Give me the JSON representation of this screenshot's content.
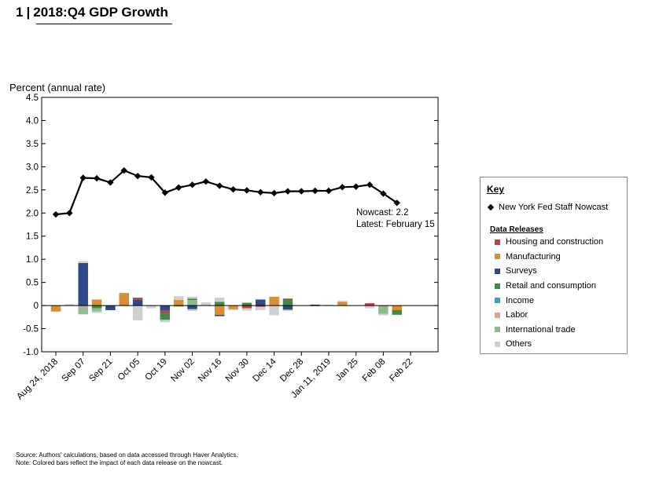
{
  "header": {
    "number": "1",
    "title": "2018:Q4 GDP Growth"
  },
  "chart_data": {
    "type": "line",
    "ylabel": "Percent (annual rate)",
    "ylim": [
      -1.0,
      4.5
    ],
    "yticks": [
      "4.5",
      "4.0",
      "3.5",
      "3.0",
      "2.5",
      "2.0",
      "1.5",
      "1.0",
      "0.5",
      "0",
      "-0.5",
      "-1.0"
    ],
    "ytick_values": [
      4.5,
      4.0,
      3.5,
      3.0,
      2.5,
      2.0,
      1.5,
      1.0,
      0.5,
      0,
      -0.5,
      -1.0
    ],
    "xtick_labels": [
      "Aug 24, 2018",
      "Sep 07",
      "Sep 21",
      "Oct 05",
      "Oct 19",
      "Nov 02",
      "Nov 16",
      "Nov 30",
      "Dec 14",
      "Dec 28",
      "Jan 11, 2019",
      "Jan 25",
      "Feb 08",
      "Feb 22"
    ],
    "nowcast": {
      "name": "New York Fed Staff Nowcast",
      "values": [
        1.97,
        2.0,
        2.76,
        2.75,
        2.66,
        2.92,
        2.8,
        2.77,
        2.44,
        2.55,
        2.61,
        2.68,
        2.59,
        2.51,
        2.49,
        2.45,
        2.43,
        2.47,
        2.47,
        2.48,
        2.48,
        2.56,
        2.57,
        2.61,
        2.42,
        2.22
      ]
    },
    "annotation": {
      "line1": "Nowcast:  2.2",
      "line2": "Latest: February 15"
    },
    "legend": {
      "key_title": "Key",
      "data_releases_title": "Data Releases",
      "categories": [
        {
          "name": "Housing and construction",
          "color": "#c0404a"
        },
        {
          "name": "Manufacturing",
          "color": "#d98e34"
        },
        {
          "name": "Surveys",
          "color": "#2f4a86"
        },
        {
          "name": "Retail and consumption",
          "color": "#3f8a45"
        },
        {
          "name": "Income",
          "color": "#2ba5d6"
        },
        {
          "name": "Labor",
          "color": "#e0a090"
        },
        {
          "name": "International trade",
          "color": "#8fbc8f"
        },
        {
          "name": "Others",
          "color": "#cfcfcf"
        }
      ]
    },
    "impacts": [
      [
        [
          1,
          -0.13
        ]
      ],
      [
        [
          7,
          0.03
        ]
      ],
      [
        [
          2,
          0.92
        ],
        [
          7,
          0.04
        ],
        [
          5,
          -0.04
        ],
        [
          6,
          -0.15
        ]
      ],
      [
        [
          1,
          0.13
        ],
        [
          3,
          -0.06
        ],
        [
          6,
          -0.07
        ],
        [
          7,
          -0.03
        ]
      ],
      [
        [
          2,
          -0.1
        ]
      ],
      [
        [
          1,
          0.27
        ]
      ],
      [
        [
          2,
          0.12
        ],
        [
          0,
          0.05
        ],
        [
          7,
          -0.2
        ],
        [
          7,
          -0.12
        ]
      ],
      [
        [
          7,
          -0.06
        ]
      ],
      [
        [
          2,
          -0.1
        ],
        [
          0,
          -0.06
        ],
        [
          3,
          -0.15
        ],
        [
          7,
          -0.05
        ]
      ],
      [
        [
          1,
          0.12
        ],
        [
          7,
          0.08
        ],
        [
          3,
          -0.02
        ]
      ],
      [
        [
          6,
          0.12
        ],
        [
          3,
          0.03
        ],
        [
          7,
          0.04
        ],
        [
          2,
          -0.08
        ],
        [
          7,
          -0.04
        ]
      ],
      [
        [
          7,
          0.07
        ]
      ],
      [
        [
          3,
          0.08
        ],
        [
          7,
          0.09
        ],
        [
          1,
          -0.2
        ],
        [
          2,
          -0.03
        ]
      ],
      [
        [
          1,
          -0.08
        ],
        [
          7,
          -0.02
        ]
      ],
      [
        [
          3,
          0.06
        ],
        [
          0,
          -0.06
        ],
        [
          7,
          -0.05
        ]
      ],
      [
        [
          2,
          0.13
        ],
        [
          0,
          -0.03
        ],
        [
          7,
          -0.07
        ]
      ],
      [
        [
          1,
          0.19
        ],
        [
          7,
          -0.15
        ],
        [
          7,
          -0.06
        ]
      ],
      [
        [
          3,
          0.12
        ],
        [
          0,
          0.03
        ],
        [
          2,
          -0.09
        ],
        [
          7,
          -0.03
        ]
      ],
      [],
      [
        [
          2,
          0.02
        ],
        [
          7,
          -0.02
        ]
      ],
      [
        [
          7,
          0.02
        ]
      ],
      [
        [
          1,
          0.08
        ],
        [
          7,
          0.02
        ]
      ],
      [],
      [
        [
          0,
          0.05
        ],
        [
          7,
          -0.06
        ]
      ],
      [
        [
          6,
          -0.18
        ],
        [
          7,
          -0.03
        ]
      ],
      [
        [
          1,
          -0.1
        ],
        [
          3,
          -0.1
        ]
      ]
    ]
  },
  "footer": {
    "source": "Source: Authors' calculations, based on data accessed through Haver Analytics.",
    "note": "Note: Colored bars reflect the impact of each data release on the nowcast."
  }
}
